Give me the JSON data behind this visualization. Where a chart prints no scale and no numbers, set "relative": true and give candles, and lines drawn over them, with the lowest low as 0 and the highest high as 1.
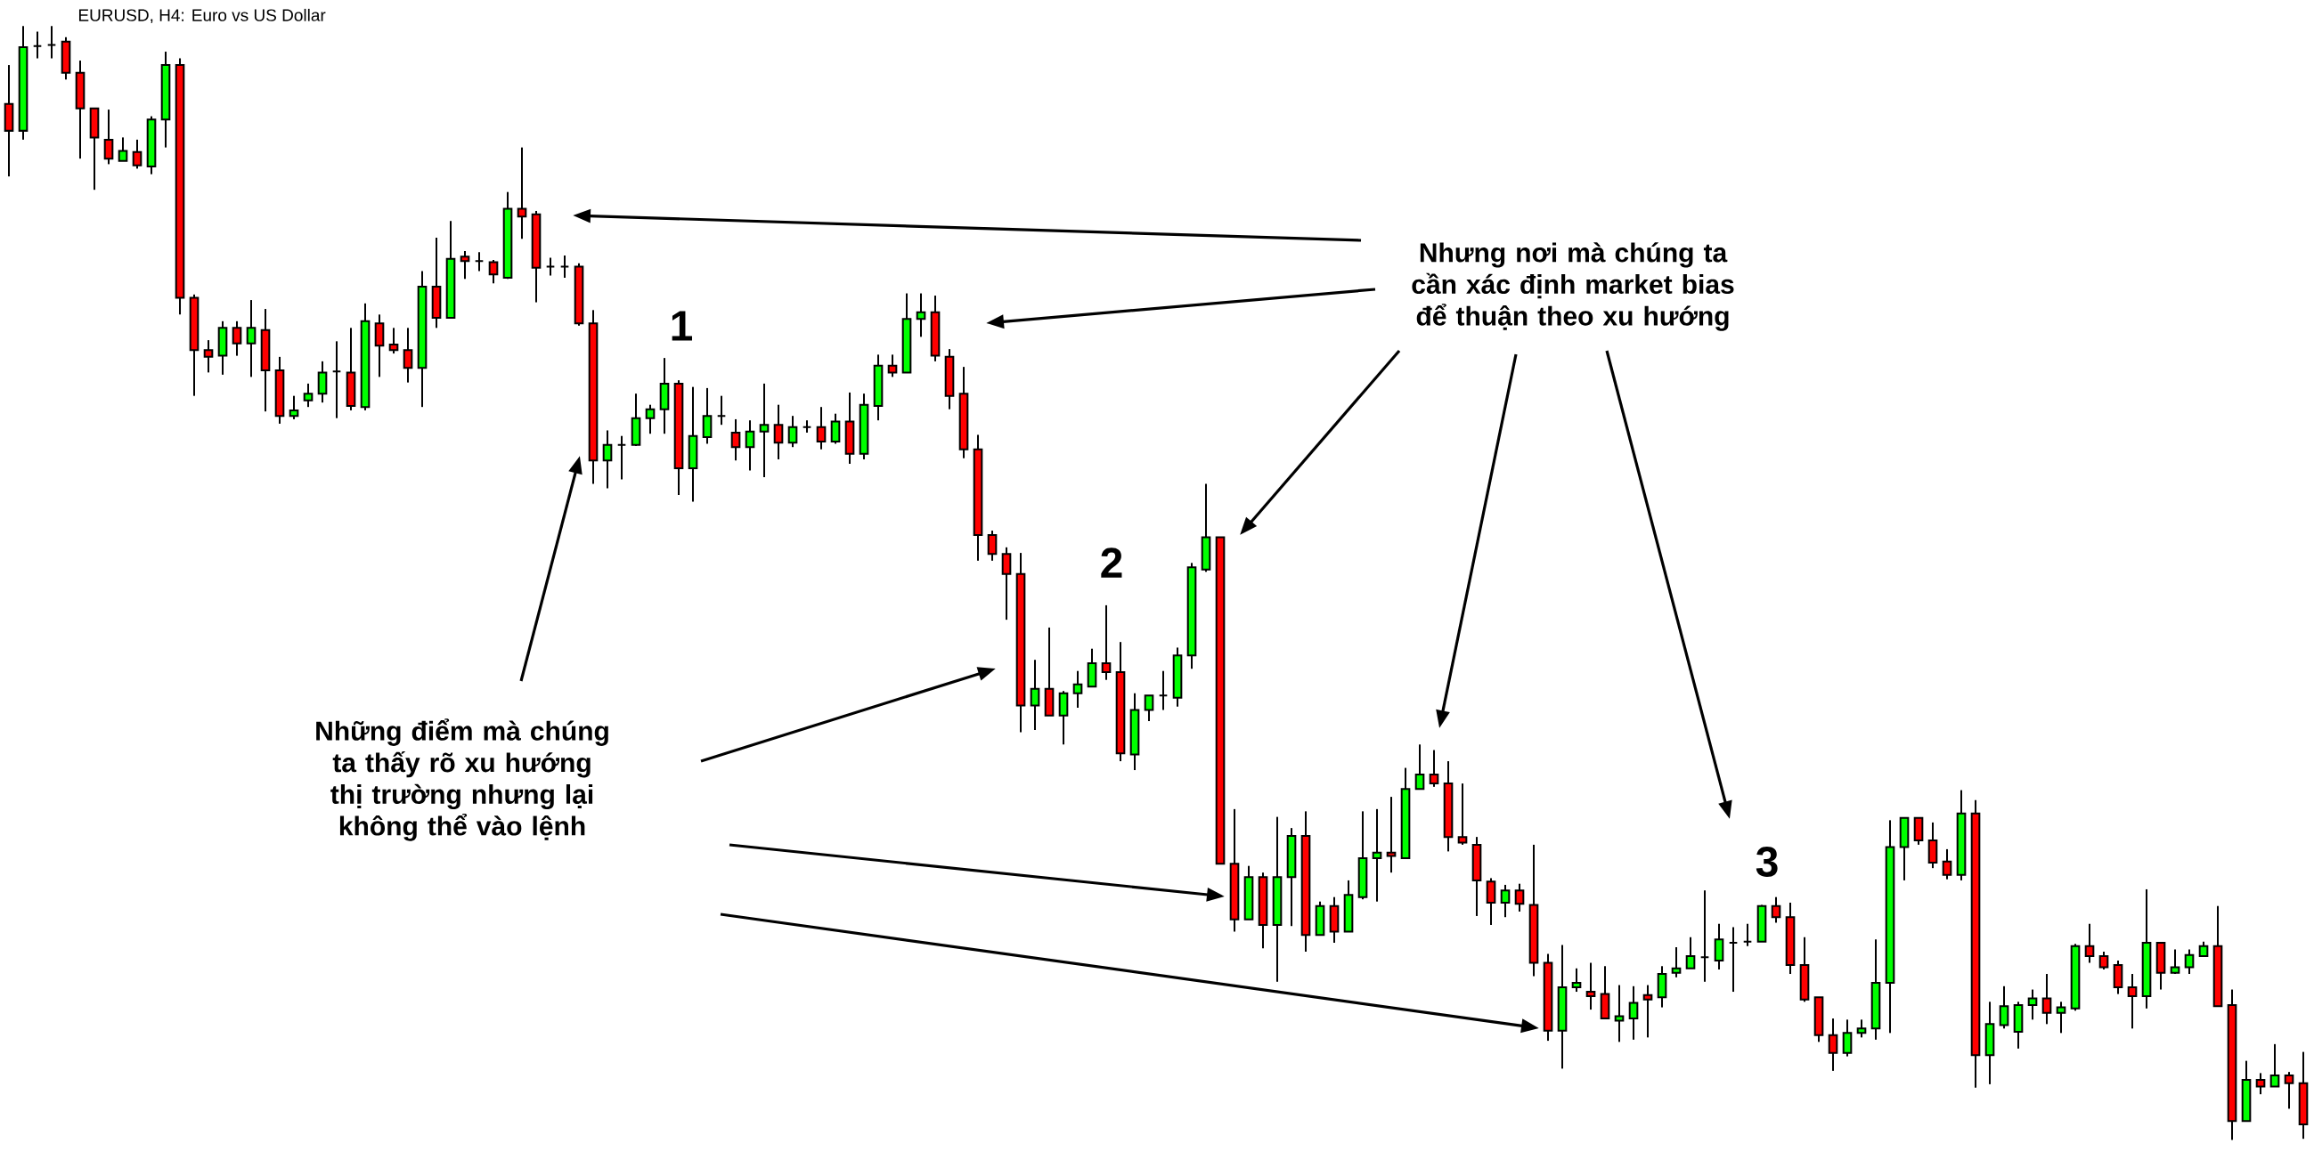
{
  "chart_data": {
    "type": "candlestick",
    "title": "EURUSD, H4: Euro vs US Dollar",
    "relative": true,
    "annotations": [
      "1",
      "2",
      "3",
      "Nhưng nơi mà chúng ta cần xác định market bias để thuận theo xu hướng",
      "Những điểm mà chúng ta thấy rõ xu hướng thị trường nhưng lại không thể vào lệnh"
    ],
    "categories": [
      null,
      null,
      null,
      null,
      null,
      null,
      null,
      null,
      null,
      null,
      null,
      null,
      null,
      null,
      null,
      null,
      null,
      null,
      null,
      null,
      null,
      null,
      null,
      null,
      null,
      null,
      null,
      null,
      null,
      null,
      null,
      null,
      null,
      null,
      null,
      null,
      null,
      null,
      null,
      null,
      null,
      null,
      null,
      null,
      null,
      null,
      null,
      null,
      null,
      null,
      null,
      null,
      null,
      null,
      null,
      null,
      null,
      null,
      null,
      null,
      null,
      null,
      null,
      null,
      null,
      null,
      null,
      null,
      null,
      null,
      null,
      null,
      null,
      null,
      null,
      null,
      null,
      null,
      null,
      null,
      null,
      null,
      null,
      null,
      null,
      null,
      null,
      null,
      null,
      null,
      null,
      null,
      null,
      null,
      null,
      null,
      null,
      null,
      null,
      null,
      null,
      null,
      null,
      null,
      null,
      null,
      null,
      null,
      null,
      null,
      null,
      null,
      null,
      null,
      null,
      null,
      null,
      null,
      null,
      null,
      null,
      null,
      null,
      null,
      null,
      null,
      null,
      null,
      null,
      null,
      null,
      null,
      null,
      null,
      null,
      null,
      null,
      null,
      null,
      null,
      null,
      null,
      null,
      null,
      null,
      null,
      null,
      null,
      null,
      null,
      null,
      null,
      null,
      null,
      null,
      null,
      null,
      null,
      null,
      null,
      null,
      null
    ],
    "ohlc": [
      [
        0.93,
        0.965,
        0.865,
        0.906
      ],
      [
        0.906,
        1.0,
        0.898,
        0.981
      ],
      [
        0.982,
        0.995,
        0.971,
        0.982
      ],
      [
        0.983,
        1.0,
        0.971,
        0.983
      ],
      [
        0.986,
        0.99,
        0.952,
        0.958
      ],
      [
        0.958,
        0.969,
        0.881,
        0.926
      ],
      [
        0.926,
        0.926,
        0.853,
        0.9
      ],
      [
        0.898,
        0.925,
        0.876,
        0.881
      ],
      [
        0.879,
        0.9,
        0.879,
        0.888
      ],
      [
        0.887,
        0.898,
        0.872,
        0.875
      ],
      [
        0.874,
        0.919,
        0.867,
        0.916
      ],
      [
        0.916,
        0.977,
        0.891,
        0.965
      ],
      [
        0.965,
        0.971,
        0.741,
        0.756
      ],
      [
        0.756,
        0.759,
        0.668,
        0.709
      ],
      [
        0.709,
        0.718,
        0.689,
        0.703
      ],
      [
        0.704,
        0.735,
        0.687,
        0.729
      ],
      [
        0.729,
        0.735,
        0.704,
        0.715
      ],
      [
        0.715,
        0.754,
        0.685,
        0.729
      ],
      [
        0.727,
        0.746,
        0.654,
        0.691
      ],
      [
        0.691,
        0.703,
        0.643,
        0.65
      ],
      [
        0.65,
        0.668,
        0.647,
        0.655
      ],
      [
        0.664,
        0.679,
        0.658,
        0.67
      ],
      [
        0.67,
        0.699,
        0.662,
        0.689
      ],
      [
        0.69,
        0.717,
        0.648,
        0.69
      ],
      [
        0.689,
        0.729,
        0.655,
        0.659
      ],
      [
        0.658,
        0.751,
        0.655,
        0.735
      ],
      [
        0.733,
        0.741,
        0.685,
        0.713
      ],
      [
        0.714,
        0.729,
        0.706,
        0.709
      ],
      [
        0.709,
        0.729,
        0.68,
        0.693
      ],
      [
        0.693,
        0.78,
        0.658,
        0.766
      ],
      [
        0.766,
        0.81,
        0.729,
        0.738
      ],
      [
        0.738,
        0.825,
        0.738,
        0.791
      ],
      [
        0.793,
        0.798,
        0.773,
        0.789
      ],
      [
        0.789,
        0.797,
        0.78,
        0.789
      ],
      [
        0.788,
        0.79,
        0.769,
        0.777
      ],
      [
        0.774,
        0.851,
        0.773,
        0.836
      ],
      [
        0.836,
        0.891,
        0.809,
        0.829
      ],
      [
        0.831,
        0.834,
        0.752,
        0.783
      ],
      [
        0.784,
        0.792,
        0.776,
        0.784
      ],
      [
        0.784,
        0.794,
        0.774,
        0.784
      ],
      [
        0.784,
        0.787,
        0.731,
        0.733
      ],
      [
        0.733,
        0.745,
        0.589,
        0.61
      ],
      [
        0.61,
        0.637,
        0.585,
        0.624
      ],
      [
        0.624,
        0.632,
        0.593,
        0.624
      ],
      [
        0.624,
        0.67,
        0.623,
        0.648
      ],
      [
        0.648,
        0.66,
        0.634,
        0.656
      ],
      [
        0.656,
        0.702,
        0.634,
        0.679
      ],
      [
        0.679,
        0.682,
        0.579,
        0.603
      ],
      [
        0.603,
        0.676,
        0.573,
        0.632
      ],
      [
        0.631,
        0.675,
        0.625,
        0.65
      ],
      [
        0.65,
        0.668,
        0.642,
        0.65
      ],
      [
        0.635,
        0.647,
        0.61,
        0.622
      ],
      [
        0.622,
        0.646,
        0.601,
        0.636
      ],
      [
        0.636,
        0.679,
        0.595,
        0.642
      ],
      [
        0.642,
        0.66,
        0.611,
        0.626
      ],
      [
        0.626,
        0.65,
        0.622,
        0.64
      ],
      [
        0.64,
        0.646,
        0.635,
        0.64
      ],
      [
        0.64,
        0.658,
        0.62,
        0.627
      ],
      [
        0.627,
        0.652,
        0.625,
        0.645
      ],
      [
        0.645,
        0.671,
        0.607,
        0.616
      ],
      [
        0.616,
        0.67,
        0.611,
        0.66
      ],
      [
        0.659,
        0.705,
        0.646,
        0.695
      ],
      [
        0.695,
        0.705,
        0.685,
        0.689
      ],
      [
        0.689,
        0.76,
        0.689,
        0.737
      ],
      [
        0.737,
        0.76,
        0.721,
        0.743
      ],
      [
        0.743,
        0.758,
        0.699,
        0.704
      ],
      [
        0.703,
        0.71,
        0.656,
        0.668
      ],
      [
        0.67,
        0.694,
        0.612,
        0.62
      ],
      [
        0.62,
        0.633,
        0.52,
        0.543
      ],
      [
        0.543,
        0.547,
        0.52,
        0.526
      ],
      [
        0.526,
        0.532,
        0.467,
        0.508
      ],
      [
        0.508,
        0.527,
        0.366,
        0.39
      ],
      [
        0.39,
        0.431,
        0.368,
        0.405
      ],
      [
        0.405,
        0.46,
        0.381,
        0.381
      ],
      [
        0.381,
        0.403,
        0.355,
        0.401
      ],
      [
        0.401,
        0.421,
        0.388,
        0.409
      ],
      [
        0.407,
        0.441,
        0.407,
        0.428
      ],
      [
        0.428,
        0.48,
        0.413,
        0.42
      ],
      [
        0.42,
        0.447,
        0.34,
        0.347
      ],
      [
        0.346,
        0.401,
        0.332,
        0.386
      ],
      [
        0.386,
        0.399,
        0.376,
        0.399
      ],
      [
        0.399,
        0.421,
        0.386,
        0.399
      ],
      [
        0.397,
        0.442,
        0.389,
        0.435
      ],
      [
        0.435,
        0.518,
        0.423,
        0.514
      ],
      [
        0.512,
        0.589,
        0.51,
        0.541
      ],
      [
        0.541,
        0.541,
        0.248,
        0.248
      ],
      [
        0.248,
        0.297,
        0.187,
        0.198
      ],
      [
        0.198,
        0.246,
        0.198,
        0.236
      ],
      [
        0.236,
        0.24,
        0.172,
        0.193
      ],
      [
        0.193,
        0.29,
        0.142,
        0.236
      ],
      [
        0.236,
        0.28,
        0.192,
        0.273
      ],
      [
        0.273,
        0.295,
        0.169,
        0.184
      ],
      [
        0.184,
        0.214,
        0.184,
        0.21
      ],
      [
        0.21,
        0.218,
        0.177,
        0.187
      ],
      [
        0.187,
        0.233,
        0.187,
        0.22
      ],
      [
        0.218,
        0.295,
        0.216,
        0.253
      ],
      [
        0.253,
        0.297,
        0.214,
        0.258
      ],
      [
        0.258,
        0.308,
        0.24,
        0.255
      ],
      [
        0.253,
        0.334,
        0.253,
        0.315
      ],
      [
        0.315,
        0.355,
        0.315,
        0.328
      ],
      [
        0.328,
        0.35,
        0.317,
        0.32
      ],
      [
        0.32,
        0.34,
        0.259,
        0.272
      ],
      [
        0.272,
        0.32,
        0.265,
        0.267
      ],
      [
        0.265,
        0.272,
        0.201,
        0.233
      ],
      [
        0.232,
        0.235,
        0.193,
        0.213
      ],
      [
        0.213,
        0.229,
        0.2,
        0.224
      ],
      [
        0.224,
        0.23,
        0.205,
        0.212
      ],
      [
        0.211,
        0.265,
        0.147,
        0.159
      ],
      [
        0.159,
        0.167,
        0.089,
        0.098
      ],
      [
        0.098,
        0.175,
        0.064,
        0.137
      ],
      [
        0.137,
        0.154,
        0.133,
        0.141
      ],
      [
        0.133,
        0.159,
        0.117,
        0.129
      ],
      [
        0.131,
        0.156,
        0.109,
        0.109
      ],
      [
        0.107,
        0.139,
        0.088,
        0.111
      ],
      [
        0.109,
        0.138,
        0.09,
        0.123
      ],
      [
        0.13,
        0.139,
        0.092,
        0.126
      ],
      [
        0.128,
        0.156,
        0.119,
        0.149
      ],
      [
        0.15,
        0.173,
        0.146,
        0.154
      ],
      [
        0.154,
        0.182,
        0.154,
        0.165
      ],
      [
        0.164,
        0.224,
        0.142,
        0.164
      ],
      [
        0.161,
        0.194,
        0.153,
        0.18
      ],
      [
        0.177,
        0.191,
        0.133,
        0.177
      ],
      [
        0.178,
        0.194,
        0.174,
        0.178
      ],
      [
        0.178,
        0.211,
        0.178,
        0.21
      ],
      [
        0.21,
        0.218,
        0.195,
        0.2
      ],
      [
        0.2,
        0.213,
        0.149,
        0.157
      ],
      [
        0.157,
        0.182,
        0.124,
        0.126
      ],
      [
        0.128,
        0.128,
        0.088,
        0.094
      ],
      [
        0.094,
        0.109,
        0.062,
        0.078
      ],
      [
        0.078,
        0.108,
        0.075,
        0.096
      ],
      [
        0.096,
        0.108,
        0.092,
        0.1
      ],
      [
        0.1,
        0.18,
        0.09,
        0.141
      ],
      [
        0.141,
        0.287,
        0.096,
        0.263
      ],
      [
        0.263,
        0.289,
        0.233,
        0.289
      ],
      [
        0.289,
        0.289,
        0.265,
        0.269
      ],
      [
        0.269,
        0.285,
        0.244,
        0.249
      ],
      [
        0.25,
        0.261,
        0.234,
        0.238
      ],
      [
        0.238,
        0.314,
        0.233,
        0.293
      ],
      [
        0.293,
        0.305,
        0.047,
        0.076
      ],
      [
        0.076,
        0.124,
        0.05,
        0.104
      ],
      [
        0.103,
        0.138,
        0.1,
        0.12
      ],
      [
        0.097,
        0.124,
        0.082,
        0.121
      ],
      [
        0.121,
        0.135,
        0.108,
        0.127
      ],
      [
        0.127,
        0.149,
        0.104,
        0.114
      ],
      [
        0.114,
        0.124,
        0.096,
        0.119
      ],
      [
        0.118,
        0.176,
        0.116,
        0.174
      ],
      [
        0.174,
        0.194,
        0.159,
        0.165
      ],
      [
        0.165,
        0.169,
        0.153,
        0.155
      ],
      [
        0.157,
        0.161,
        0.131,
        0.137
      ],
      [
        0.137,
        0.149,
        0.1,
        0.129
      ],
      [
        0.129,
        0.225,
        0.118,
        0.177
      ],
      [
        0.177,
        0.177,
        0.135,
        0.15
      ],
      [
        0.15,
        0.171,
        0.149,
        0.155
      ],
      [
        0.155,
        0.171,
        0.149,
        0.166
      ],
      [
        0.165,
        0.178,
        0.165,
        0.174
      ],
      [
        0.174,
        0.21,
        0.12,
        0.12
      ],
      [
        0.121,
        0.135,
        0.0,
        0.017
      ],
      [
        0.017,
        0.071,
        0.017,
        0.054
      ],
      [
        0.054,
        0.06,
        0.041,
        0.048
      ],
      [
        0.048,
        0.086,
        0.048,
        0.058
      ],
      [
        0.058,
        0.061,
        0.028,
        0.051
      ],
      [
        0.051,
        0.079,
        0.001,
        0.014
      ]
    ],
    "colors": [
      "#ff0000",
      "#00ff00",
      "#000000",
      "#000000",
      "#ff0000",
      "#ff0000",
      "#ff0000",
      "#ff0000",
      "#00ff00",
      "#ff0000",
      "#00ff00",
      "#00ff00",
      "#ff0000",
      "#ff0000",
      "#ff0000",
      "#00ff00",
      "#ff0000",
      "#00ff00",
      "#ff0000",
      "#ff0000",
      "#00ff00",
      "#00ff00",
      "#00ff00",
      "#000000",
      "#ff0000",
      "#00ff00",
      "#ff0000",
      "#ff0000",
      "#ff0000",
      "#00ff00",
      "#ff0000",
      "#00ff00",
      "#ff0000",
      "#000000",
      "#ff0000",
      "#00ff00",
      "#ff0000",
      "#ff0000",
      "#000000",
      "#000000",
      "#ff0000",
      "#ff0000",
      "#00ff00",
      "#000000",
      "#00ff00",
      "#00ff00",
      "#00ff00",
      "#ff0000",
      "#00ff00",
      "#00ff00",
      "#000000",
      "#ff0000",
      "#00ff00",
      "#00ff00",
      "#ff0000",
      "#00ff00",
      "#000000",
      "#ff0000",
      "#00ff00",
      "#ff0000",
      "#00ff00",
      "#00ff00",
      "#ff0000",
      "#00ff00",
      "#00ff00",
      "#ff0000",
      "#ff0000",
      "#ff0000",
      "#ff0000",
      "#ff0000",
      "#ff0000",
      "#ff0000",
      "#00ff00",
      "#ff0000",
      "#00ff00",
      "#00ff00",
      "#00ff00",
      "#ff0000",
      "#ff0000",
      "#00ff00",
      "#00ff00",
      "#000000",
      "#00ff00",
      "#00ff00",
      "#00ff00",
      "#ff0000",
      "#ff0000",
      "#00ff00",
      "#ff0000",
      "#00ff00",
      "#00ff00",
      "#ff0000",
      "#00ff00",
      "#ff0000",
      "#00ff00",
      "#00ff00",
      "#00ff00",
      "#ff0000",
      "#00ff00",
      "#00ff00",
      "#ff0000",
      "#ff0000",
      "#ff0000",
      "#ff0000",
      "#ff0000",
      "#00ff00",
      "#ff0000",
      "#ff0000",
      "#ff0000",
      "#00ff00",
      "#00ff00",
      "#ff0000",
      "#ff0000",
      "#00ff00",
      "#00ff00",
      "#ff0000",
      "#00ff00",
      "#00ff00",
      "#00ff00",
      "#000000",
      "#00ff00",
      "#000000",
      "#000000",
      "#00ff00",
      "#ff0000",
      "#ff0000",
      "#ff0000",
      "#ff0000",
      "#ff0000",
      "#00ff00",
      "#00ff00",
      "#00ff00",
      "#00ff00",
      "#00ff00",
      "#ff0000",
      "#ff0000",
      "#ff0000",
      "#00ff00",
      "#ff0000",
      "#00ff00",
      "#00ff00",
      "#00ff00",
      "#00ff00",
      "#ff0000",
      "#00ff00",
      "#00ff00",
      "#ff0000",
      "#ff0000",
      "#ff0000",
      "#ff0000",
      "#00ff00",
      "#ff0000",
      "#00ff00",
      "#00ff00",
      "#00ff00",
      "#ff0000",
      "#ff0000",
      "#00ff00",
      "#ff0000",
      "#00ff00",
      "#ff0000",
      "#ff0000"
    ]
  }
}
